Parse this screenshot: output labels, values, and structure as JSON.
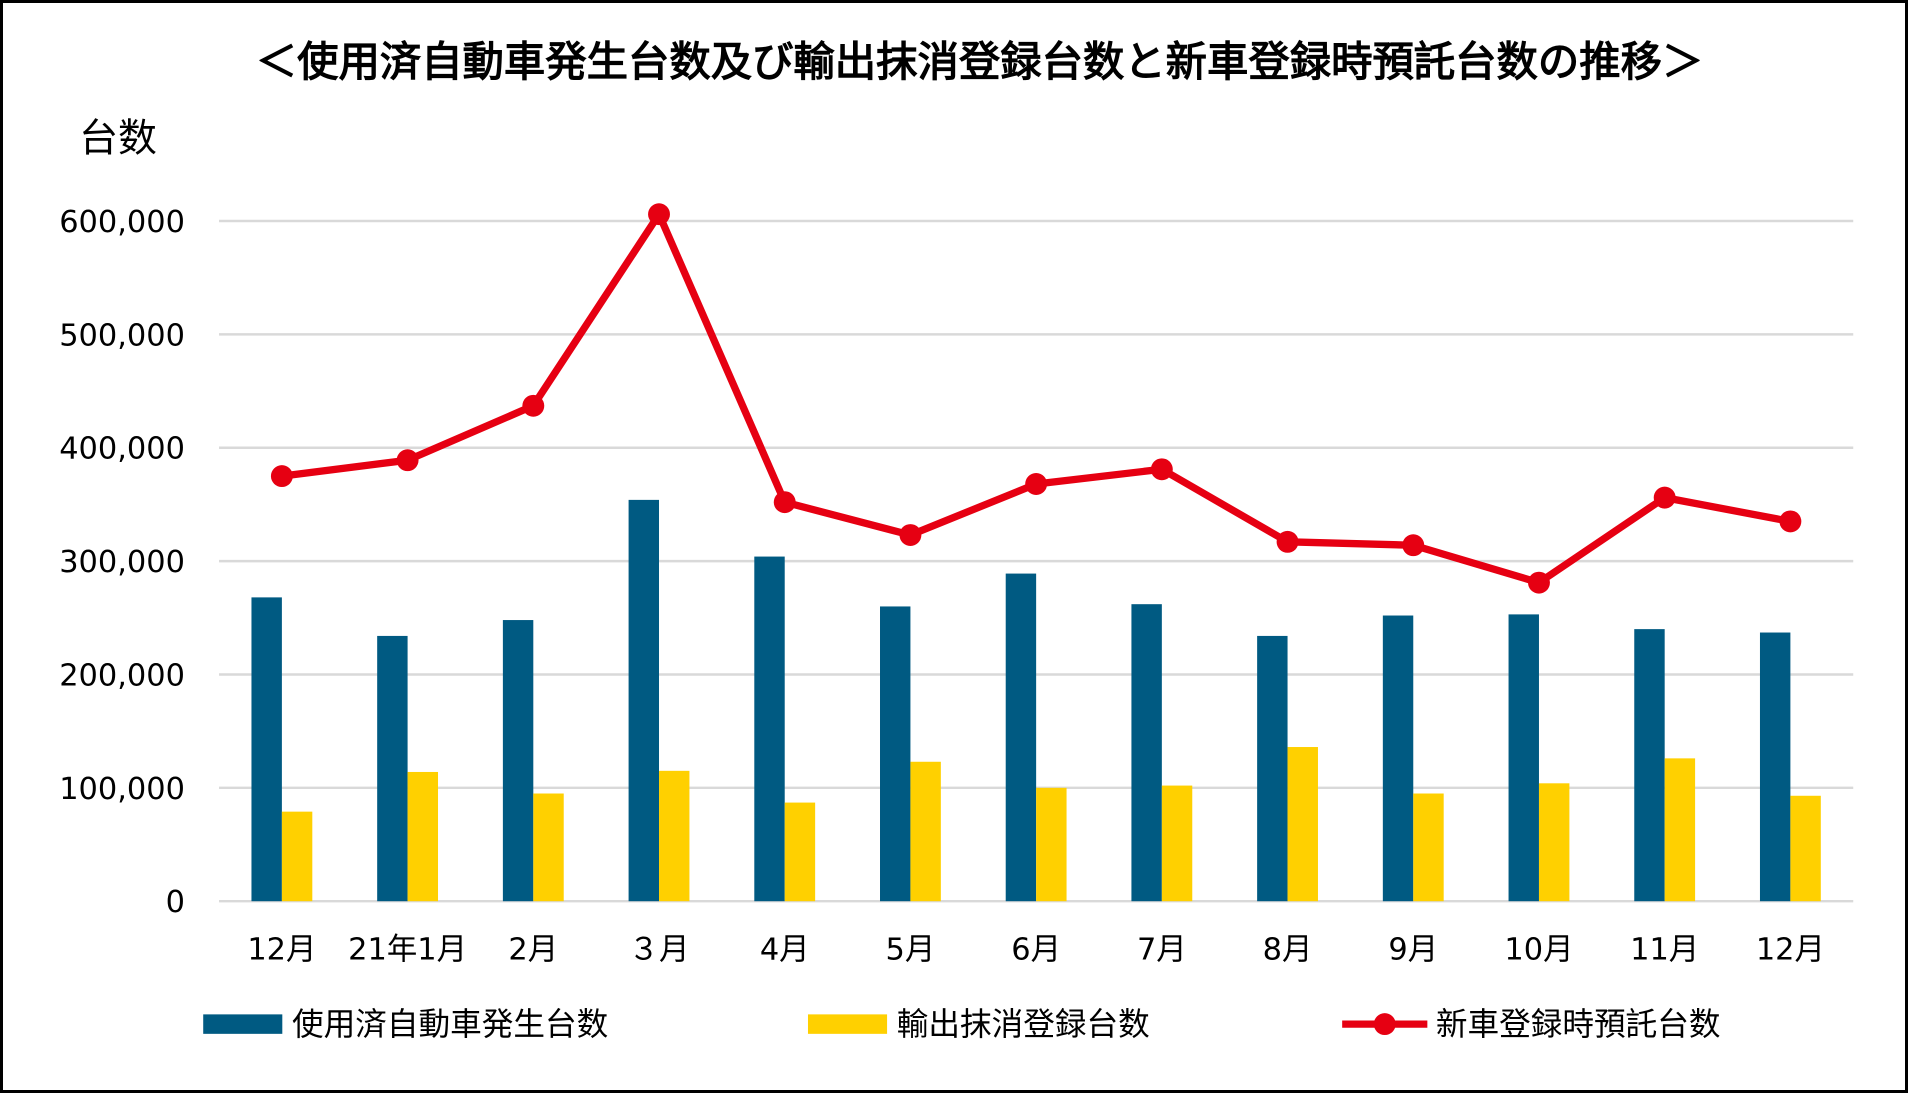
{
  "chart_data": {
    "type": "bar",
    "title": "＜使用済自動車発生台数及び輸出抹消登録台数と新車登録時預託台数の推移＞",
    "ylabel": "台数",
    "xlabel": "",
    "ylim": [
      0,
      600000
    ],
    "yticks": [
      0,
      100000,
      200000,
      300000,
      400000,
      500000,
      600000
    ],
    "ytick_labels": [
      "0",
      "100,000",
      "200,000",
      "300,000",
      "400,000",
      "500,000",
      "600,000"
    ],
    "grid": true,
    "legend_position": "bottom",
    "categories": [
      "12月",
      "21年1月",
      "2月",
      "３月",
      "4月",
      "5月",
      "6月",
      "7月",
      "8月",
      "9月",
      "10月",
      "11月",
      "12月"
    ],
    "series": [
      {
        "name": "使用済自動車発生台数",
        "type": "bar",
        "color": "#005A82",
        "values": [
          268000,
          234000,
          248000,
          354000,
          304000,
          260000,
          289000,
          262000,
          234000,
          252000,
          253000,
          240000,
          237000
        ]
      },
      {
        "name": "輸出抹消登録台数",
        "type": "bar",
        "color": "#FFD000",
        "values": [
          79000,
          114000,
          95000,
          115000,
          87000,
          123000,
          100000,
          102000,
          136000,
          95000,
          104000,
          126000,
          93000
        ]
      },
      {
        "name": "新車登録時預託台数",
        "type": "line",
        "color": "#E60012",
        "values": [
          375000,
          389000,
          437000,
          606000,
          352000,
          323000,
          368000,
          381000,
          317000,
          314000,
          281000,
          356000,
          335000
        ]
      }
    ]
  }
}
